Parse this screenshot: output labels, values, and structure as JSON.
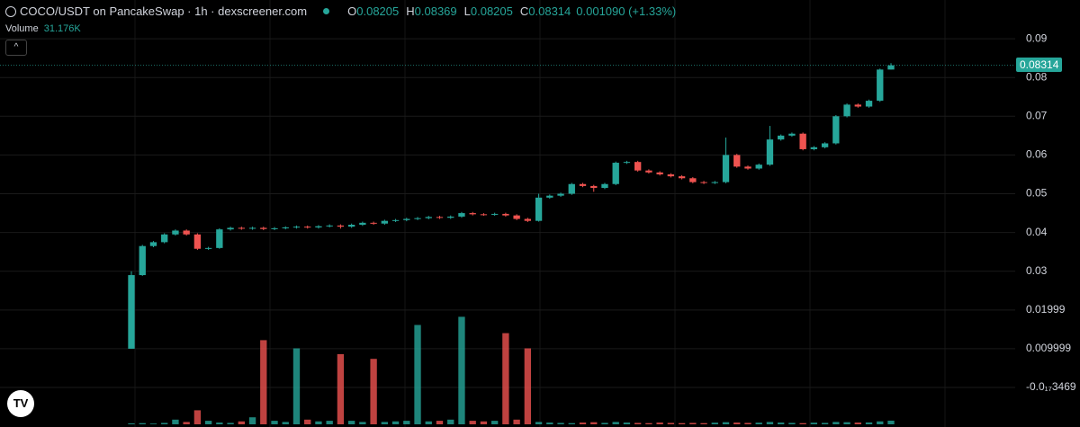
{
  "chart_data": {
    "type": "candlestick",
    "title": "COCO/USDT on PancakeSwap · 1h · dexscreener.com",
    "ohlc_labels": [
      "O",
      "H",
      "L",
      "C"
    ],
    "change": "0.001090 (+1.33%)",
    "ylim": [
      -0.0102,
      0.1
    ],
    "yticks": [
      0.09,
      0.08,
      0.07,
      0.06,
      0.05,
      0.04,
      0.03,
      {
        "value": 0.02,
        "label": "0.01999"
      },
      {
        "value": 0.01,
        "label": "0.009999"
      },
      {
        "value": 0,
        "label": "-0.0₁₇3469"
      }
    ],
    "grid": true,
    "up_color": "#26a69a",
    "down_color": "#ef5350",
    "series": [
      {
        "open": [
          0.01,
          0.029,
          0.0365,
          0.0375,
          0.0395,
          0.0405,
          0.0395,
          0.0358,
          0.036,
          0.0408,
          0.0412,
          0.041,
          0.0412,
          0.0409,
          0.0411,
          0.0413,
          0.0415,
          0.0413,
          0.0416,
          0.0418,
          0.0415,
          0.042,
          0.0425,
          0.0423,
          0.043,
          0.0432,
          0.0435,
          0.0437,
          0.044,
          0.0438,
          0.0441,
          0.045,
          0.0447,
          0.0446,
          0.0448,
          0.0444,
          0.0435,
          0.043,
          0.049,
          0.0495,
          0.05,
          0.0525,
          0.052,
          0.0515,
          0.0525,
          0.058,
          0.0582,
          0.056,
          0.0555,
          0.055,
          0.0545,
          0.054,
          0.053,
          0.0528,
          0.053,
          0.06,
          0.057,
          0.0565,
          0.0575,
          0.064,
          0.065,
          0.0655,
          0.0615,
          0.062,
          0.063,
          0.07,
          0.073,
          0.0725,
          0.074,
          0.08205
        ],
        "high": [
          0.03,
          0.0368,
          0.0378,
          0.0398,
          0.0408,
          0.0408,
          0.0398,
          0.0363,
          0.0411,
          0.0415,
          0.0415,
          0.0415,
          0.0415,
          0.0414,
          0.0416,
          0.0418,
          0.0418,
          0.0419,
          0.0421,
          0.0421,
          0.0423,
          0.0428,
          0.0428,
          0.0433,
          0.0435,
          0.0438,
          0.044,
          0.0443,
          0.0443,
          0.0444,
          0.0453,
          0.0453,
          0.045,
          0.0451,
          0.0451,
          0.0447,
          0.0438,
          0.05,
          0.0498,
          0.0503,
          0.0528,
          0.0528,
          0.0523,
          0.0528,
          0.0583,
          0.0585,
          0.0585,
          0.0563,
          0.0558,
          0.0553,
          0.0548,
          0.0543,
          0.0533,
          0.0533,
          0.0645,
          0.0603,
          0.0573,
          0.0578,
          0.0675,
          0.0653,
          0.0658,
          0.0658,
          0.0623,
          0.0633,
          0.0703,
          0.0733,
          0.0733,
          0.0743,
          0.0823,
          0.08369
        ],
        "low": [
          0.01,
          0.0288,
          0.0362,
          0.0372,
          0.0392,
          0.0392,
          0.0355,
          0.0355,
          0.0358,
          0.0405,
          0.0407,
          0.0407,
          0.0406,
          0.0406,
          0.0408,
          0.041,
          0.041,
          0.041,
          0.0413,
          0.041,
          0.0412,
          0.0417,
          0.042,
          0.042,
          0.0427,
          0.0429,
          0.0432,
          0.0434,
          0.0435,
          0.0435,
          0.0438,
          0.0444,
          0.0443,
          0.0443,
          0.0441,
          0.0432,
          0.0427,
          0.0428,
          0.0487,
          0.0492,
          0.0497,
          0.0517,
          0.0505,
          0.0512,
          0.0522,
          0.0577,
          0.0557,
          0.0552,
          0.0547,
          0.0542,
          0.0537,
          0.0527,
          0.0525,
          0.0525,
          0.0527,
          0.0567,
          0.0562,
          0.0562,
          0.0572,
          0.0637,
          0.0647,
          0.0612,
          0.0612,
          0.0617,
          0.0627,
          0.0697,
          0.0722,
          0.0722,
          0.0737,
          0.08205
        ],
        "close": [
          0.029,
          0.0365,
          0.0375,
          0.0395,
          0.0405,
          0.0395,
          0.0358,
          0.036,
          0.0408,
          0.0412,
          0.041,
          0.0412,
          0.0409,
          0.0411,
          0.0413,
          0.0415,
          0.0413,
          0.0416,
          0.0418,
          0.0415,
          0.042,
          0.0425,
          0.0423,
          0.043,
          0.0432,
          0.0435,
          0.0437,
          0.044,
          0.0438,
          0.0441,
          0.045,
          0.0447,
          0.0446,
          0.0448,
          0.0444,
          0.0435,
          0.043,
          0.049,
          0.0495,
          0.05,
          0.0525,
          0.052,
          0.0515,
          0.0525,
          0.058,
          0.0582,
          0.056,
          0.0555,
          0.055,
          0.0545,
          0.054,
          0.053,
          0.0528,
          0.053,
          0.06,
          0.057,
          0.0565,
          0.0575,
          0.064,
          0.065,
          0.0655,
          0.0615,
          0.062,
          0.063,
          0.07,
          0.073,
          0.0725,
          0.074,
          0.08205,
          0.08314
        ]
      }
    ],
    "volume": {
      "name": "Volume",
      "current_label": "31.176K",
      "vlim": [
        0,
        1000
      ],
      "values": [
        8,
        10,
        6,
        12,
        40,
        20,
        120,
        30,
        15,
        12,
        25,
        60,
        720,
        30,
        20,
        650,
        40,
        25,
        30,
        600,
        30,
        20,
        560,
        20,
        25,
        30,
        850,
        25,
        30,
        40,
        920,
        30,
        25,
        30,
        780,
        40,
        650,
        20,
        15,
        12,
        10,
        15,
        18,
        12,
        20,
        15,
        12,
        10,
        15,
        12,
        10,
        12,
        10,
        14,
        18,
        15,
        12,
        14,
        20,
        15,
        12,
        10,
        14,
        12,
        20,
        18,
        15,
        16,
        25,
        31.176
      ]
    }
  }
}
